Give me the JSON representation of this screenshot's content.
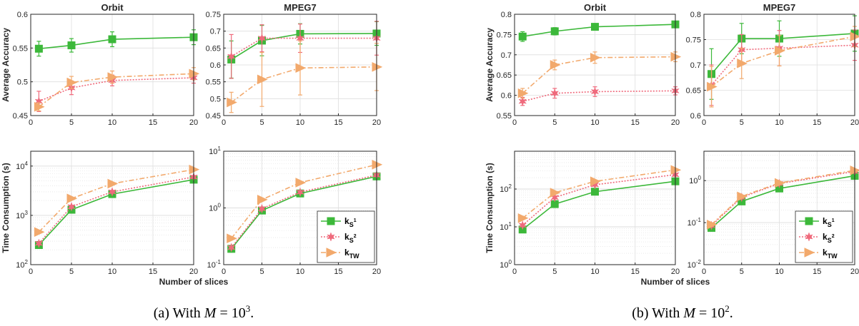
{
  "colors": {
    "ks1": "#3cb83a",
    "ks2": "#ef6a7c",
    "ktw": "#f2a96c",
    "grid": "#dedede",
    "axis": "#262626"
  },
  "captions": [
    {
      "prefix": "(a) With ",
      "var": "M",
      "eq": " = 10",
      "sup": "3",
      "suffix": "."
    },
    {
      "prefix": "(b) With ",
      "var": "M",
      "eq": " = 10",
      "sup": "2",
      "suffix": "."
    }
  ],
  "legend": [
    {
      "base": "k",
      "sub": "S",
      "subsup": "1",
      "key": "ks1"
    },
    {
      "base": "k",
      "sub": "S",
      "subsup": "2",
      "key": "ks2"
    },
    {
      "base": "k",
      "sub": "TW",
      "subsup": "",
      "key": "ktw"
    }
  ],
  "chart_data": [
    {
      "type": "line",
      "figure": "a",
      "title": "Orbit",
      "ylabel": "Average Accuracy",
      "xlabel": "",
      "x": [
        1,
        5,
        10,
        20
      ],
      "xlim": [
        0,
        20
      ],
      "xticks": [
        "0",
        "5",
        "10",
        "15",
        "20"
      ],
      "ylim": [
        0.45,
        0.6
      ],
      "yscale": "linear",
      "yticks": [
        "0.45",
        "0.5",
        "0.55",
        "0.6"
      ],
      "grid": true,
      "series": [
        {
          "key": "ks1",
          "values": [
            0.549,
            0.554,
            0.563,
            0.566
          ],
          "err": [
            0.011,
            0.01,
            0.011,
            0.011
          ]
        },
        {
          "key": "ks2",
          "values": [
            0.471,
            0.491,
            0.502,
            0.506
          ],
          "err": [
            0.015,
            0.01,
            0.008,
            0.008
          ]
        },
        {
          "key": "ktw",
          "values": [
            0.463,
            0.499,
            0.507,
            0.512
          ],
          "err": [
            0.006,
            0.009,
            0.009,
            0.009
          ]
        }
      ]
    },
    {
      "type": "line",
      "figure": "a",
      "title": "MPEG7",
      "ylabel": "",
      "xlabel": "",
      "x": [
        1,
        5,
        10,
        20
      ],
      "xlim": [
        0,
        20
      ],
      "xticks": [
        "0",
        "5",
        "10",
        "15",
        "20"
      ],
      "ylim": [
        0.45,
        0.75
      ],
      "yscale": "linear",
      "yticks": [
        "0.45",
        "0.5",
        "0.55",
        "0.6",
        "0.65",
        "0.7",
        "0.75"
      ],
      "grid": true,
      "series": [
        {
          "key": "ks1",
          "values": [
            0.616,
            0.672,
            0.692,
            0.693
          ],
          "err": [
            0.055,
            0.045,
            0.03,
            0.035
          ]
        },
        {
          "key": "ks2",
          "values": [
            0.625,
            0.679,
            0.679,
            0.679
          ],
          "err": [
            0.065,
            0.04,
            0.042,
            0.05
          ]
        },
        {
          "key": "ktw",
          "values": [
            0.489,
            0.557,
            0.591,
            0.594
          ],
          "err": [
            0.03,
            0.08,
            0.08,
            0.07
          ]
        }
      ]
    },
    {
      "type": "line",
      "figure": "a",
      "title": "",
      "ylabel": "Time Consumption (s)",
      "xlabel": "Number of slices",
      "x": [
        1,
        5,
        10,
        20
      ],
      "xlim": [
        0,
        20
      ],
      "xticks": [
        "0",
        "5",
        "10",
        "15",
        "20"
      ],
      "ylim": [
        100,
        20000
      ],
      "yscale": "log",
      "ydecades": [
        2,
        4
      ],
      "grid": true,
      "series": [
        {
          "key": "ks1",
          "values": [
            250,
            1300,
            2700,
            5300
          ]
        },
        {
          "key": "ks2",
          "values": [
            270,
            1500,
            3000,
            6000
          ]
        },
        {
          "key": "ktw",
          "values": [
            460,
            2200,
            4400,
            8500
          ]
        }
      ]
    },
    {
      "type": "line",
      "figure": "a",
      "title": "",
      "ylabel": "",
      "xlabel": "",
      "x": [
        1,
        5,
        10,
        20
      ],
      "xlim": [
        0,
        20
      ],
      "xticks": [
        "0",
        "5",
        "10",
        "15",
        "20"
      ],
      "ylim": [
        0.1,
        10
      ],
      "yscale": "log",
      "ydecades": [
        -1,
        1
      ],
      "grid": true,
      "legend": "lower-right",
      "series": [
        {
          "key": "ks1",
          "values": [
            0.19,
            0.9,
            1.8,
            3.6
          ]
        },
        {
          "key": "ks2",
          "values": [
            0.2,
            0.97,
            1.9,
            3.8
          ]
        },
        {
          "key": "ktw",
          "values": [
            0.29,
            1.4,
            2.8,
            5.8
          ]
        }
      ]
    },
    {
      "type": "line",
      "figure": "b",
      "title": "Orbit",
      "ylabel": "Average Accuracy",
      "xlabel": "",
      "x": [
        1,
        5,
        10,
        20
      ],
      "xlim": [
        0,
        20
      ],
      "xticks": [
        "0",
        "5",
        "10",
        "15",
        "20"
      ],
      "ylim": [
        0.55,
        0.8
      ],
      "yscale": "linear",
      "yticks": [
        "0.55",
        "0.6",
        "0.65",
        "0.7",
        "0.75",
        "0.8"
      ],
      "grid": true,
      "series": [
        {
          "key": "ks1",
          "values": [
            0.745,
            0.758,
            0.769,
            0.775
          ],
          "err": [
            0.012,
            0.009,
            0.008,
            0.008
          ]
        },
        {
          "key": "ks2",
          "values": [
            0.585,
            0.605,
            0.609,
            0.611
          ],
          "err": [
            0.01,
            0.012,
            0.012,
            0.01
          ]
        },
        {
          "key": "ktw",
          "values": [
            0.605,
            0.675,
            0.693,
            0.695
          ],
          "err": [
            0.012,
            0.012,
            0.014,
            0.012
          ]
        }
      ]
    },
    {
      "type": "line",
      "figure": "b",
      "title": "MPEG7",
      "ylabel": "",
      "xlabel": "",
      "x": [
        1,
        5,
        10,
        20
      ],
      "xlim": [
        0,
        20
      ],
      "xticks": [
        "0",
        "5",
        "10",
        "15",
        "20"
      ],
      "ylim": [
        0.6,
        0.8
      ],
      "yscale": "linear",
      "yticks": [
        "0.6",
        "0.65",
        "0.7",
        "0.75",
        "0.8"
      ],
      "grid": true,
      "series": [
        {
          "key": "ks1",
          "values": [
            0.682,
            0.752,
            0.752,
            0.762
          ],
          "err": [
            0.05,
            0.03,
            0.035,
            0.035
          ]
        },
        {
          "key": "ks2",
          "values": [
            0.66,
            0.73,
            0.733,
            0.739
          ],
          "err": [
            0.04,
            0.03,
            0.035,
            0.03
          ]
        },
        {
          "key": "ktw",
          "values": [
            0.657,
            0.703,
            0.728,
            0.756
          ],
          "err": [
            0.04,
            0.03,
            0.03,
            0.02
          ]
        }
      ]
    },
    {
      "type": "line",
      "figure": "b",
      "title": "",
      "ylabel": "Time Consumption (s)",
      "xlabel": "Number of slices",
      "x": [
        1,
        5,
        10,
        20
      ],
      "xlim": [
        0,
        20
      ],
      "xticks": [
        "0",
        "5",
        "10",
        "15",
        "20"
      ],
      "ylim": [
        1,
        1000
      ],
      "yscale": "log",
      "ydecades": [
        0,
        2
      ],
      "grid": true,
      "series": [
        {
          "key": "ks1",
          "values": [
            8.5,
            40,
            85,
            160
          ]
        },
        {
          "key": "ks2",
          "values": [
            11,
            60,
            130,
            240
          ]
        },
        {
          "key": "ktw",
          "values": [
            17,
            80,
            160,
            320
          ]
        }
      ]
    },
    {
      "type": "line",
      "figure": "b",
      "title": "",
      "ylabel": "",
      "xlabel": "",
      "x": [
        1,
        5,
        10,
        20
      ],
      "xlim": [
        0,
        20
      ],
      "xticks": [
        "0",
        "5",
        "10",
        "15",
        "20"
      ],
      "ylim": [
        0.01,
        5
      ],
      "yscale": "log",
      "ydecades": [
        -2,
        0
      ],
      "grid": true,
      "legend": "lower-right",
      "series": [
        {
          "key": "ks1",
          "values": [
            0.075,
            0.32,
            0.65,
            1.3
          ]
        },
        {
          "key": "ks2",
          "values": [
            0.085,
            0.4,
            0.85,
            1.65
          ]
        },
        {
          "key": "ktw",
          "values": [
            0.09,
            0.42,
            0.88,
            1.75
          ]
        }
      ]
    }
  ]
}
